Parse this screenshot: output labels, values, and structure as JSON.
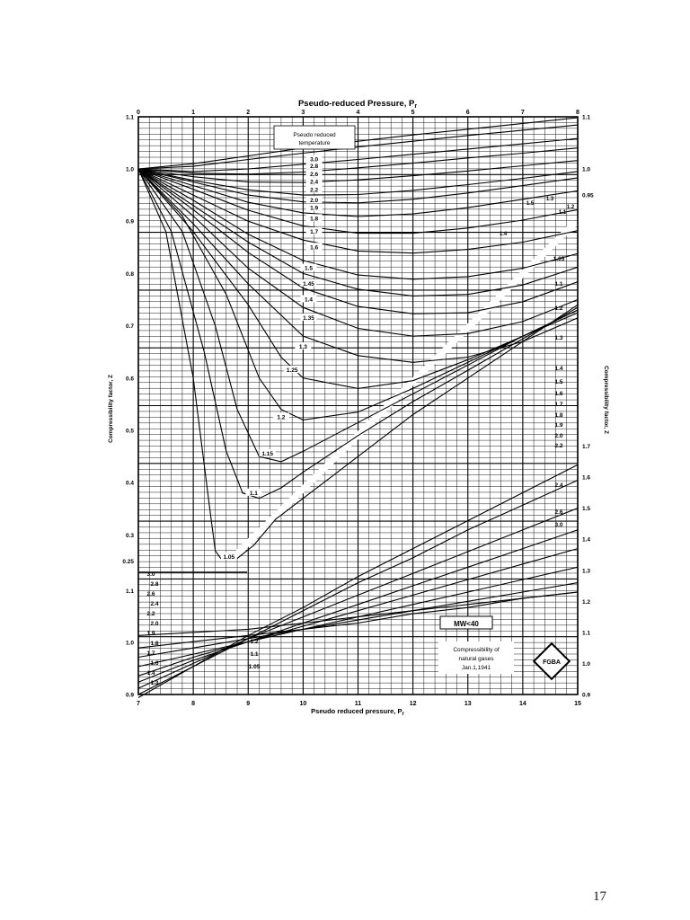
{
  "page": {
    "number": "17"
  },
  "chart_data": {
    "type": "line",
    "title": "Pseudo-reduced Pressure, P",
    "title_subscript": "r",
    "top_axis": {
      "ticks": [
        "0",
        "1",
        "2",
        "3",
        "4",
        "5",
        "6",
        "7",
        "8"
      ]
    },
    "bottom_axis": {
      "label": "Pseudo reduced pressure, P",
      "label_subscript": "r",
      "ticks": [
        "7",
        "8",
        "9",
        "10",
        "11",
        "12",
        "13",
        "14",
        "15"
      ]
    },
    "left_axis_upper": {
      "label": "Compressibility factor, Z",
      "ticks": [
        "1.1",
        "1.0",
        "0.9",
        "0.8",
        "0.7",
        "0.6",
        "0.5",
        "0.4",
        "0.3",
        "0.25"
      ]
    },
    "left_axis_lower": {
      "ticks": [
        "1.1",
        "1.0",
        "0.9"
      ]
    },
    "right_axis_upper": {
      "label": "Compressibility factor, Z",
      "ticks": [
        "1.1",
        "1.0",
        "0.95"
      ]
    },
    "right_axis_lower": {
      "ticks": [
        "1.7",
        "1.6",
        "1.5",
        "1.4",
        "1.3",
        "1.2",
        "1.1",
        "1.0",
        "0.9"
      ]
    },
    "temperature_box": {
      "line1": "Pseudo reduced",
      "line2": "temperature"
    },
    "mw_box": {
      "text": "MW<40"
    },
    "footer_box": {
      "line1": "Compressibility of",
      "line2": "natural gases",
      "line3": "Jan.1,1941"
    },
    "logo": {
      "text": "FGBA"
    },
    "low_range_curves": [
      {
        "tr": "3.0",
        "x": [
          0,
          1,
          2,
          3,
          4,
          5,
          6,
          7,
          8
        ],
        "z": [
          1.0,
          1.01,
          1.025,
          1.04,
          1.053,
          1.065,
          1.076,
          1.087,
          1.098
        ]
      },
      {
        "tr": "2.8",
        "x": [
          0,
          1,
          2,
          3,
          4,
          5,
          6,
          7,
          8
        ],
        "z": [
          1.0,
          1.005,
          1.018,
          1.03,
          1.042,
          1.053,
          1.064,
          1.074,
          1.084
        ]
      },
      {
        "tr": "2.6",
        "x": [
          0,
          1,
          2,
          3,
          4,
          5,
          6,
          7,
          8
        ],
        "z": [
          1.0,
          0.995,
          1.0,
          1.009,
          1.018,
          1.028,
          1.038,
          1.048,
          1.058
        ]
      },
      {
        "tr": "2.4",
        "x": [
          0,
          1,
          2,
          3,
          4,
          5,
          6,
          7,
          8
        ],
        "z": [
          1.0,
          0.992,
          0.99,
          0.994,
          1.002,
          1.011,
          1.021,
          1.03,
          1.04
        ]
      },
      {
        "tr": "2.2",
        "x": [
          0,
          1,
          2,
          3,
          4,
          5,
          6,
          7,
          8
        ],
        "z": [
          1.0,
          0.985,
          0.975,
          0.974,
          0.979,
          0.987,
          0.996,
          1.006,
          1.016
        ]
      },
      {
        "tr": "2.0",
        "x": [
          0,
          1,
          2,
          3,
          4,
          5,
          6,
          7,
          8
        ],
        "z": [
          1.0,
          0.978,
          0.96,
          0.95,
          0.951,
          0.959,
          0.97,
          0.982,
          0.995
        ]
      },
      {
        "tr": "1.9",
        "x": [
          0,
          1,
          2,
          3,
          4,
          5,
          6,
          7,
          8
        ],
        "z": [
          1.0,
          0.975,
          0.95,
          0.937,
          0.935,
          0.942,
          0.954,
          0.968,
          0.983
        ]
      },
      {
        "tr": "1.8",
        "x": [
          0,
          1,
          2,
          3,
          4,
          5,
          6,
          7,
          8
        ],
        "z": [
          1.0,
          0.968,
          0.936,
          0.916,
          0.909,
          0.914,
          0.926,
          0.942,
          0.958
        ]
      },
      {
        "tr": "1.7",
        "x": [
          0,
          1,
          2,
          3,
          4,
          5,
          6,
          7,
          8
        ],
        "z": [
          1.0,
          0.961,
          0.921,
          0.891,
          0.877,
          0.877,
          0.887,
          0.902,
          0.922
        ]
      },
      {
        "tr": "1.6",
        "x": [
          0,
          1,
          2,
          3,
          4,
          5,
          6,
          7,
          8
        ],
        "z": [
          1.0,
          0.95,
          0.9,
          0.864,
          0.843,
          0.839,
          0.846,
          0.86,
          0.882
        ]
      },
      {
        "tr": "1.5",
        "x": [
          0,
          1,
          2,
          3,
          4,
          5,
          6,
          7,
          8
        ],
        "z": [
          1.0,
          0.94,
          0.875,
          0.825,
          0.797,
          0.789,
          0.794,
          0.81,
          0.838
        ]
      },
      {
        "tr": "1.45",
        "x": [
          0,
          1,
          2,
          3,
          4,
          5,
          6,
          7,
          8
        ],
        "z": [
          1.0,
          0.93,
          0.86,
          0.8,
          0.77,
          0.757,
          0.76,
          0.778,
          0.812
        ]
      },
      {
        "tr": "1.4",
        "x": [
          0,
          1,
          2,
          3,
          4,
          5,
          6,
          7,
          8
        ],
        "z": [
          1.0,
          0.922,
          0.84,
          0.772,
          0.737,
          0.723,
          0.725,
          0.746,
          0.784
        ]
      },
      {
        "tr": "1.35",
        "x": [
          0,
          1,
          2,
          3,
          4,
          5,
          6,
          7,
          8
        ],
        "z": [
          1.0,
          0.91,
          0.81,
          0.735,
          0.695,
          0.68,
          0.685,
          0.708,
          0.75
        ]
      },
      {
        "tr": "1.3",
        "x": [
          0,
          1,
          2,
          3,
          4,
          5,
          6,
          7,
          8
        ],
        "z": [
          1.0,
          0.895,
          0.78,
          0.68,
          0.643,
          0.63,
          0.64,
          0.67,
          0.715
        ]
      },
      {
        "tr": "1.25",
        "x": [
          0,
          1,
          2,
          2.6,
          3,
          4,
          5,
          6,
          7,
          8
        ],
        "z": [
          1.0,
          0.88,
          0.74,
          0.64,
          0.6,
          0.58,
          0.595,
          0.635,
          0.68,
          0.725
        ]
      },
      {
        "tr": "1.2",
        "x": [
          0,
          0.8,
          1.6,
          2.2,
          2.6,
          3,
          4,
          5,
          6,
          7,
          8
        ],
        "z": [
          1.0,
          0.91,
          0.76,
          0.6,
          0.54,
          0.52,
          0.535,
          0.58,
          0.63,
          0.68,
          0.73
        ]
      },
      {
        "tr": "1.15",
        "x": [
          0,
          0.8,
          1.4,
          1.8,
          2.2,
          2.6,
          3,
          4,
          5,
          6,
          7,
          8
        ],
        "z": [
          1.0,
          0.88,
          0.7,
          0.54,
          0.45,
          0.44,
          0.46,
          0.515,
          0.57,
          0.625,
          0.68,
          0.73
        ]
      },
      {
        "tr": "1.1",
        "x": [
          0,
          0.6,
          1.2,
          1.6,
          1.9,
          2.2,
          2.6,
          3,
          4,
          5,
          6,
          7,
          8
        ],
        "z": [
          1.0,
          0.88,
          0.65,
          0.46,
          0.38,
          0.37,
          0.39,
          0.42,
          0.49,
          0.555,
          0.615,
          0.675,
          0.735
        ]
      },
      {
        "tr": "1.05",
        "x": [
          0,
          0.5,
          1.0,
          1.3,
          1.4,
          1.5,
          1.8,
          2.1,
          2.5,
          3,
          4,
          5,
          6,
          7,
          8
        ],
        "z": [
          1.0,
          0.88,
          0.6,
          0.35,
          0.27,
          0.255,
          0.255,
          0.28,
          0.33,
          0.37,
          0.45,
          0.53,
          0.6,
          0.67,
          0.74
        ]
      }
    ],
    "low_range_labels": [
      "3.0",
      "2.8",
      "2.6",
      "2.4",
      "2.2",
      "2.0",
      "1.9",
      "1.8",
      "1.7",
      "1.6",
      "1.5",
      "1.45",
      "1.4",
      "1.35",
      "1.3",
      "1.25",
      "1.2",
      "1.15",
      "1.1",
      "1.05"
    ],
    "high_range_curves": [
      {
        "tr": "1.05",
        "x": [
          7,
          8,
          9,
          10,
          11,
          12,
          13,
          14,
          15
        ],
        "z": [
          0.89,
          0.99,
          1.09,
          1.18,
          1.28,
          1.37,
          1.46,
          1.55,
          1.64
        ]
      },
      {
        "tr": "1.1",
        "x": [
          7,
          8,
          9,
          10,
          11,
          12,
          13,
          14,
          15
        ],
        "z": [
          0.9,
          0.99,
          1.08,
          1.17,
          1.26,
          1.34,
          1.43,
          1.51,
          1.59
        ]
      },
      {
        "tr": "1.2",
        "x": [
          7,
          8,
          9,
          10,
          11,
          12,
          13,
          14,
          15
        ],
        "z": [
          0.92,
          1.0,
          1.08,
          1.15,
          1.22,
          1.29,
          1.36,
          1.43,
          1.5
        ]
      },
      {
        "tr": "1.3",
        "x": [
          7,
          8,
          9,
          10,
          11,
          12,
          13,
          14,
          15
        ],
        "z": [
          0.94,
          1.01,
          1.07,
          1.13,
          1.19,
          1.25,
          1.31,
          1.37,
          1.43
        ]
      },
      {
        "tr": "1.4",
        "x": [
          7,
          8,
          9,
          10,
          11,
          12,
          13,
          14,
          15
        ],
        "z": [
          0.96,
          1.02,
          1.07,
          1.12,
          1.17,
          1.22,
          1.27,
          1.32,
          1.37
        ]
      },
      {
        "tr": "1.6",
        "x": [
          7,
          8,
          9,
          10,
          11,
          12,
          13,
          14,
          15
        ],
        "z": [
          0.99,
          1.03,
          1.07,
          1.11,
          1.15,
          1.19,
          1.23,
          1.27,
          1.31
        ]
      },
      {
        "tr": "2.0",
        "x": [
          7,
          8,
          9,
          10,
          11,
          12,
          13,
          14,
          15
        ],
        "z": [
          1.02,
          1.05,
          1.08,
          1.11,
          1.14,
          1.17,
          1.2,
          1.23,
          1.26
        ]
      },
      {
        "tr": "2.4",
        "x": [
          7,
          8,
          9,
          10,
          11,
          12,
          13,
          14,
          15
        ],
        "z": [
          1.05,
          1.07,
          1.09,
          1.11,
          1.13,
          1.16,
          1.18,
          1.21,
          1.23
        ]
      },
      {
        "tr": "3.0",
        "x": [
          7,
          8,
          9,
          10,
          11,
          12,
          13,
          14,
          15
        ],
        "z": [
          1.09,
          1.1,
          1.11,
          1.13,
          1.15,
          1.17,
          1.19,
          1.21,
          1.23
        ]
      }
    ],
    "right_curve_labels": [
      "1.05",
      "1.1",
      "1.2",
      "1.3",
      "1.4",
      "1.5",
      "1.6",
      "1.7",
      "1.8",
      "1.9",
      "2.0",
      "2.2",
      "2.4",
      "2.6",
      "3.0"
    ],
    "lower_left_labels": [
      "3.0",
      "2.8",
      "2.6",
      "2.4",
      "2.2",
      "2.0",
      "1.9",
      "1.8",
      "1.7",
      "1.6",
      "1.4",
      "1.3"
    ],
    "lower_bottom_labels": [
      "1.2",
      "1.1",
      "1.05"
    ],
    "steep_labels": [
      "1.5",
      "1.4",
      "1.3",
      "1.2",
      "1.1"
    ],
    "grid": true,
    "legend": "none"
  }
}
